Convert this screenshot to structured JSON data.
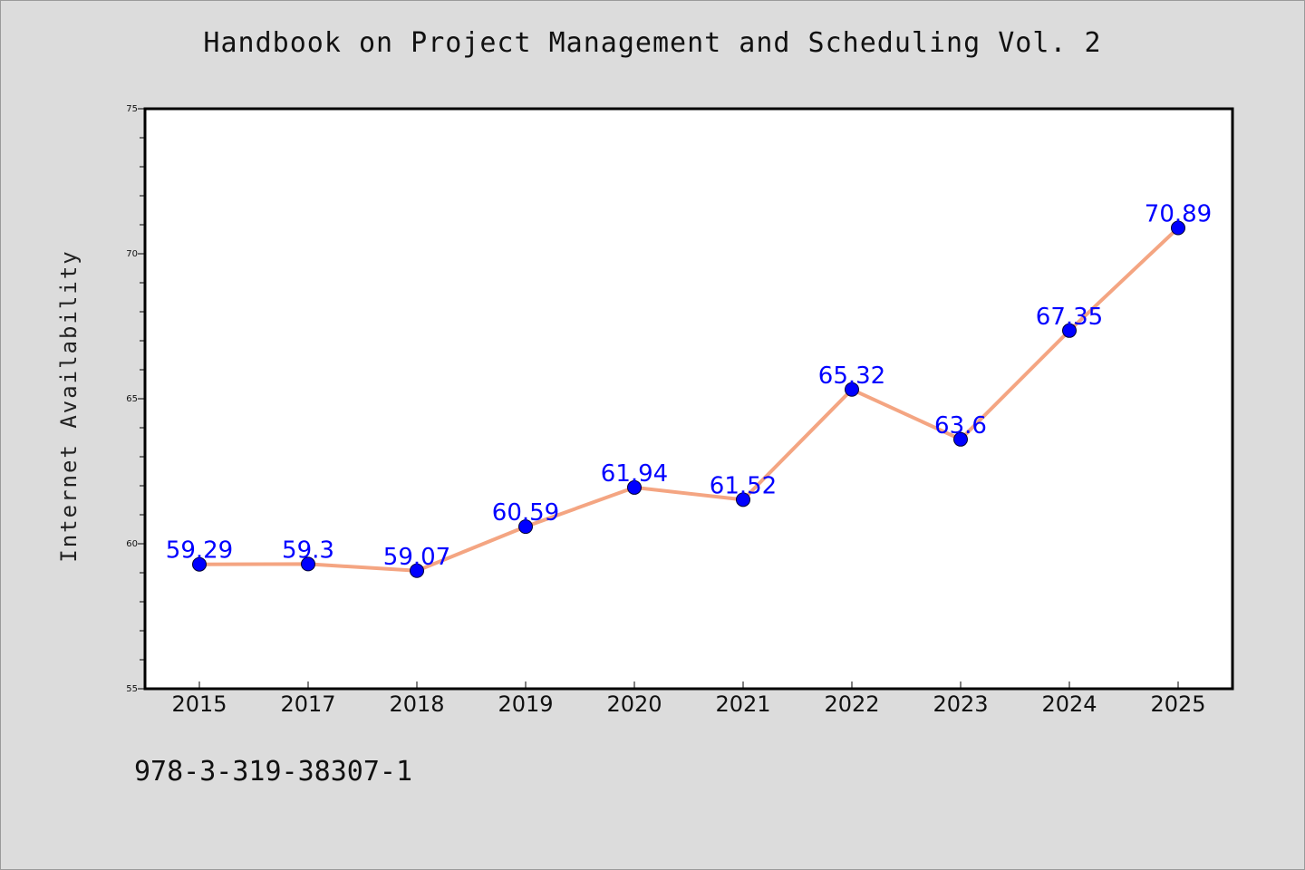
{
  "chart_data": {
    "type": "line",
    "title": "Handbook on Project Management and Scheduling Vol. 2",
    "xlabel": "",
    "ylabel": "Internet Availability",
    "categories": [
      "2015",
      "2017",
      "2018",
      "2019",
      "2020",
      "2021",
      "2022",
      "2023",
      "2024",
      "2025"
    ],
    "series": [
      {
        "values": [
          59.29,
          59.3,
          59.07,
          60.59,
          61.94,
          61.52,
          65.32,
          63.6,
          67.35,
          70.89
        ],
        "data_labels": [
          "59.29",
          "59.3",
          "59.07",
          "60.59",
          "61.94",
          "61.52",
          "65.32",
          "63.6",
          "67.35",
          "70.89"
        ]
      }
    ],
    "ylim": [
      55,
      75
    ],
    "yticks": [
      "55",
      "60",
      "65",
      "70",
      "75"
    ],
    "grid": false,
    "legend": "none",
    "colors": {
      "line": "#f4a582",
      "marker": "#0000ff",
      "data_label": "#0000ff",
      "background": "#dcdcdc",
      "plot_background": "#ffffff"
    }
  },
  "footer": {
    "isbn": "978-3-319-38307-1"
  }
}
